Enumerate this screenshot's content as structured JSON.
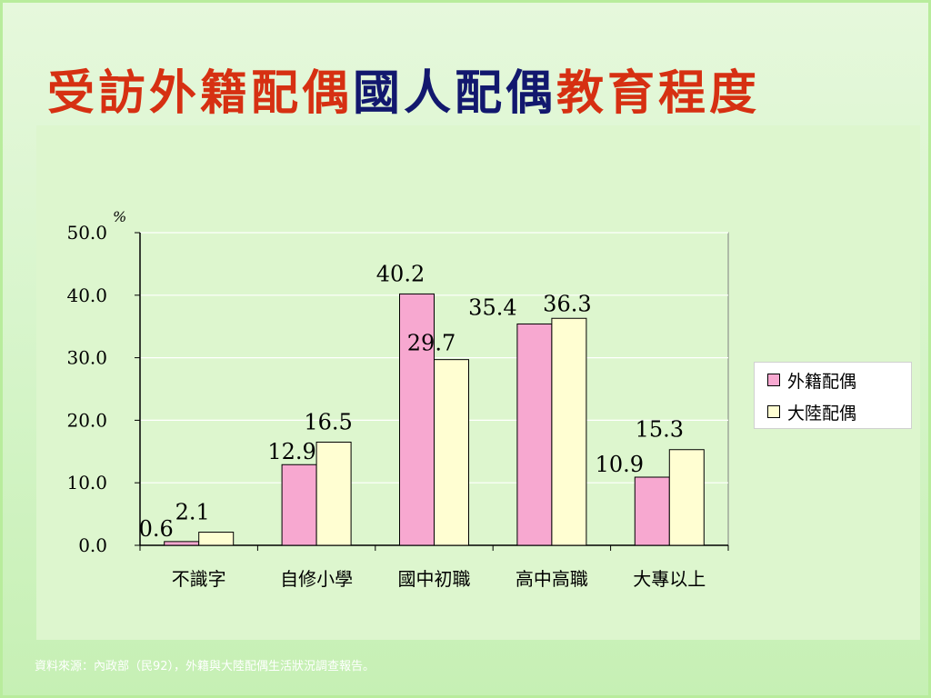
{
  "slide": {
    "title_part1": "受訪外籍配偶",
    "title_part2": "國人配偶",
    "title_part3": "教育程度",
    "source": "資料來源：內政部（民92），外籍與大陸配偶生活狀況調查報告。"
  },
  "colors": {
    "title_red": "#d63012",
    "title_navy": "#12186e",
    "series_foreign": "#f7a8d0",
    "series_mainland": "#fffed2"
  },
  "chart_data": {
    "type": "bar",
    "title": "",
    "unit_label": "%",
    "xlabel": "",
    "ylabel": "",
    "ylim": [
      0,
      50
    ],
    "yticks": [
      "0.0",
      "10.0",
      "20.0",
      "30.0",
      "40.0",
      "50.0"
    ],
    "categories": [
      "不識字",
      "自修小學",
      "國中初職",
      "高中高職",
      "大專以上"
    ],
    "series": [
      {
        "name": "外籍配偶",
        "values": [
          0.6,
          12.9,
          40.2,
          35.4,
          10.9
        ],
        "labels": [
          "0.6",
          "12.9",
          "40.2",
          "35.4",
          "10.9"
        ]
      },
      {
        "name": "大陸配偶",
        "values": [
          2.1,
          16.5,
          29.7,
          36.3,
          15.3
        ],
        "labels": [
          "2.1",
          "16.5",
          "29.7",
          "36.3",
          "15.3"
        ]
      }
    ],
    "grid": true,
    "legend_position": "right"
  }
}
